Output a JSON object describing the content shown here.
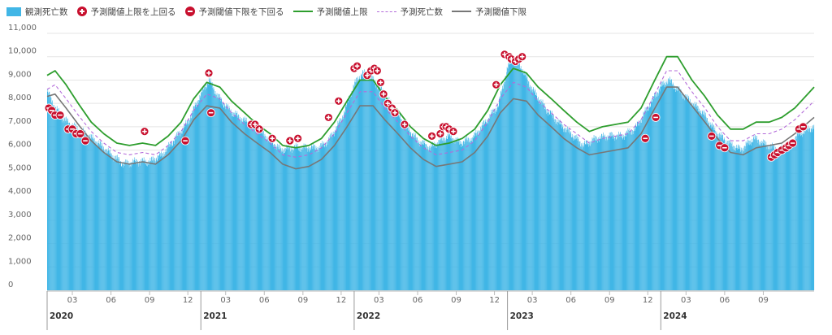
{
  "legend": {
    "observed": "観測死亡数",
    "above": "予測閾値上限を上回る",
    "below": "予測閾値下限を下回る",
    "upper": "予測閾値上限",
    "expected": "予測死亡数",
    "lower": "予測閾値下限"
  },
  "colors": {
    "bar": "#41b6e6",
    "upper": "#2e9e2e",
    "expected": "#b36bd9",
    "lower": "#777777",
    "marker": "#c8102e",
    "grid": "#e5e5e5"
  },
  "chart_data": {
    "type": "bar",
    "frequency": "daily",
    "x_start": "2020-01-01",
    "x_end": "2024-12-31",
    "ylim": [
      0,
      11000
    ],
    "y_ticks": [
      "11,000",
      "10,000",
      "9,000",
      "8,000",
      "7,000",
      "6,000",
      "5,000",
      "4,000",
      "3,000",
      "2,000",
      "1,000",
      "0"
    ],
    "y_tick_values": [
      11000,
      10000,
      9000,
      8000,
      7000,
      6000,
      5000,
      4000,
      3000,
      2000,
      1000,
      0
    ],
    "x_ticks": [
      {
        "date": "2020-03-01",
        "label": "03"
      },
      {
        "date": "2020-06-01",
        "label": "06"
      },
      {
        "date": "2020-09-01",
        "label": "09"
      },
      {
        "date": "2020-12-01",
        "label": "12"
      },
      {
        "date": "2021-03-01",
        "label": "03"
      },
      {
        "date": "2021-06-01",
        "label": "06"
      },
      {
        "date": "2021-09-01",
        "label": "09"
      },
      {
        "date": "2021-12-01",
        "label": "12"
      },
      {
        "date": "2022-03-01",
        "label": "03"
      },
      {
        "date": "2022-06-01",
        "label": "06"
      },
      {
        "date": "2022-09-01",
        "label": "09"
      },
      {
        "date": "2022-12-01",
        "label": "12"
      },
      {
        "date": "2023-03-01",
        "label": "03"
      },
      {
        "date": "2023-06-01",
        "label": "06"
      },
      {
        "date": "2023-09-01",
        "label": "09"
      },
      {
        "date": "2023-12-01",
        "label": "12"
      },
      {
        "date": "2024-03-01",
        "label": "03"
      },
      {
        "date": "2024-06-01",
        "label": "06"
      },
      {
        "date": "2024-09-01",
        "label": "09"
      }
    ],
    "year_labels": [
      {
        "date": "2020-01-01",
        "label": "2020"
      },
      {
        "date": "2021-01-01",
        "label": "2021"
      },
      {
        "date": "2022-01-01",
        "label": "2022"
      },
      {
        "date": "2023-01-01",
        "label": "2023"
      },
      {
        "date": "2024-01-01",
        "label": "2024"
      }
    ],
    "observed": [
      [
        "2020-01-01",
        8500
      ],
      [
        "2020-01-20",
        7800
      ],
      [
        "2020-02-10",
        7300
      ],
      [
        "2020-03-05",
        7000
      ],
      [
        "2020-04-01",
        6700
      ],
      [
        "2020-05-01",
        6300
      ],
      [
        "2020-06-01",
        5800
      ],
      [
        "2020-07-01",
        5400
      ],
      [
        "2020-08-01",
        5500
      ],
      [
        "2020-09-01",
        5500
      ],
      [
        "2020-10-01",
        5800
      ],
      [
        "2020-11-01",
        6500
      ],
      [
        "2020-12-01",
        7200
      ],
      [
        "2021-01-01",
        8400
      ],
      [
        "2021-01-20",
        9000
      ],
      [
        "2021-02-10",
        8300
      ],
      [
        "2021-03-10",
        7700
      ],
      [
        "2021-04-10",
        7300
      ],
      [
        "2021-05-10",
        7000
      ],
      [
        "2021-06-10",
        6500
      ],
      [
        "2021-07-10",
        6000
      ],
      [
        "2021-08-10",
        6100
      ],
      [
        "2021-09-10",
        6100
      ],
      [
        "2021-10-10",
        6100
      ],
      [
        "2021-11-01",
        6400
      ],
      [
        "2021-12-01",
        7300
      ],
      [
        "2022-01-01",
        8800
      ],
      [
        "2022-01-20",
        9300
      ],
      [
        "2022-02-10",
        9100
      ],
      [
        "2022-03-05",
        8600
      ],
      [
        "2022-04-01",
        7900
      ],
      [
        "2022-05-01",
        7100
      ],
      [
        "2022-06-01",
        6400
      ],
      [
        "2022-07-01",
        6100
      ],
      [
        "2022-07-25",
        6400
      ],
      [
        "2022-08-15",
        6600
      ],
      [
        "2022-09-10",
        6300
      ],
      [
        "2022-10-10",
        6500
      ],
      [
        "2022-11-10",
        7200
      ],
      [
        "2022-12-10",
        7900
      ],
      [
        "2023-01-01",
        9500
      ],
      [
        "2023-01-15",
        10000
      ],
      [
        "2023-02-01",
        9600
      ],
      [
        "2023-03-01",
        8600
      ],
      [
        "2023-04-01",
        7800
      ],
      [
        "2023-05-01",
        7200
      ],
      [
        "2023-06-01",
        6700
      ],
      [
        "2023-07-01",
        6200
      ],
      [
        "2023-08-01",
        6500
      ],
      [
        "2023-09-01",
        6600
      ],
      [
        "2023-10-01",
        6600
      ],
      [
        "2023-11-01",
        6900
      ],
      [
        "2023-12-01",
        7800
      ],
      [
        "2024-01-01",
        8700
      ],
      [
        "2024-01-20",
        9000
      ],
      [
        "2024-02-10",
        8600
      ],
      [
        "2024-03-10",
        8100
      ],
      [
        "2024-04-10",
        7600
      ],
      [
        "2024-05-10",
        6800
      ],
      [
        "2024-06-10",
        6300
      ],
      [
        "2024-07-10",
        6000
      ],
      [
        "2024-08-10",
        6500
      ],
      [
        "2024-09-10",
        6200
      ],
      [
        "2024-10-10",
        6000
      ],
      [
        "2024-11-01",
        6200
      ],
      [
        "2024-11-25",
        6700
      ],
      [
        "2024-12-31",
        7000
      ]
    ],
    "upper": [
      [
        "2020-01-01",
        9200
      ],
      [
        "2020-01-20",
        9400
      ],
      [
        "2020-02-15",
        8800
      ],
      [
        "2020-03-15",
        8000
      ],
      [
        "2020-04-15",
        7200
      ],
      [
        "2020-05-15",
        6700
      ],
      [
        "2020-06-15",
        6300
      ],
      [
        "2020-07-15",
        6200
      ],
      [
        "2020-08-15",
        6300
      ],
      [
        "2020-09-15",
        6200
      ],
      [
        "2020-10-15",
        6600
      ],
      [
        "2020-11-15",
        7200
      ],
      [
        "2020-12-15",
        8200
      ],
      [
        "2021-01-15",
        8900
      ],
      [
        "2021-02-15",
        8700
      ],
      [
        "2021-03-15",
        8100
      ],
      [
        "2021-04-15",
        7600
      ],
      [
        "2021-05-15",
        7100
      ],
      [
        "2021-06-15",
        6700
      ],
      [
        "2021-07-15",
        6200
      ],
      [
        "2021-08-15",
        6100
      ],
      [
        "2021-09-15",
        6200
      ],
      [
        "2021-10-15",
        6500
      ],
      [
        "2021-11-15",
        7200
      ],
      [
        "2021-12-15",
        8100
      ],
      [
        "2022-01-15",
        9000
      ],
      [
        "2022-02-15",
        9000
      ],
      [
        "2022-03-15",
        8300
      ],
      [
        "2022-04-15",
        7700
      ],
      [
        "2022-05-15",
        7000
      ],
      [
        "2022-06-15",
        6500
      ],
      [
        "2022-07-15",
        6200
      ],
      [
        "2022-08-15",
        6300
      ],
      [
        "2022-09-15",
        6500
      ],
      [
        "2022-10-15",
        6900
      ],
      [
        "2022-11-15",
        7700
      ],
      [
        "2022-12-15",
        8800
      ],
      [
        "2023-01-15",
        9500
      ],
      [
        "2023-02-15",
        9300
      ],
      [
        "2023-03-15",
        8700
      ],
      [
        "2023-04-15",
        8200
      ],
      [
        "2023-05-15",
        7700
      ],
      [
        "2023-06-15",
        7200
      ],
      [
        "2023-07-15",
        6800
      ],
      [
        "2023-08-15",
        7000
      ],
      [
        "2023-09-15",
        7100
      ],
      [
        "2023-10-15",
        7200
      ],
      [
        "2023-11-15",
        7800
      ],
      [
        "2023-12-15",
        8900
      ],
      [
        "2024-01-15",
        10000
      ],
      [
        "2024-02-10",
        10000
      ],
      [
        "2024-03-15",
        9000
      ],
      [
        "2024-04-15",
        8300
      ],
      [
        "2024-05-15",
        7500
      ],
      [
        "2024-06-15",
        6900
      ],
      [
        "2024-07-15",
        6900
      ],
      [
        "2024-08-15",
        7200
      ],
      [
        "2024-09-15",
        7200
      ],
      [
        "2024-10-15",
        7400
      ],
      [
        "2024-11-15",
        7800
      ],
      [
        "2024-12-31",
        8700
      ]
    ],
    "expected": [
      [
        "2020-01-01",
        8600
      ],
      [
        "2020-01-20",
        8800
      ],
      [
        "2020-02-15",
        8200
      ],
      [
        "2020-03-15",
        7500
      ],
      [
        "2020-04-15",
        6800
      ],
      [
        "2020-05-15",
        6300
      ],
      [
        "2020-06-15",
        5900
      ],
      [
        "2020-07-15",
        5800
      ],
      [
        "2020-08-15",
        5900
      ],
      [
        "2020-09-15",
        5800
      ],
      [
        "2020-10-15",
        6200
      ],
      [
        "2020-11-15",
        6800
      ],
      [
        "2020-12-15",
        7700
      ],
      [
        "2021-01-15",
        8400
      ],
      [
        "2021-02-15",
        8200
      ],
      [
        "2021-03-15",
        7600
      ],
      [
        "2021-04-15",
        7100
      ],
      [
        "2021-05-15",
        6700
      ],
      [
        "2021-06-15",
        6300
      ],
      [
        "2021-07-15",
        5800
      ],
      [
        "2021-08-15",
        5700
      ],
      [
        "2021-09-15",
        5800
      ],
      [
        "2021-10-15",
        6100
      ],
      [
        "2021-11-15",
        6700
      ],
      [
        "2021-12-15",
        7600
      ],
      [
        "2022-01-15",
        8500
      ],
      [
        "2022-02-15",
        8500
      ],
      [
        "2022-03-15",
        7800
      ],
      [
        "2022-04-15",
        7200
      ],
      [
        "2022-05-15",
        6600
      ],
      [
        "2022-06-15",
        6100
      ],
      [
        "2022-07-15",
        5800
      ],
      [
        "2022-08-15",
        5900
      ],
      [
        "2022-09-15",
        6000
      ],
      [
        "2022-10-15",
        6400
      ],
      [
        "2022-11-15",
        7200
      ],
      [
        "2022-12-15",
        8200
      ],
      [
        "2023-01-15",
        8900
      ],
      [
        "2023-02-15",
        8700
      ],
      [
        "2023-03-15",
        8100
      ],
      [
        "2023-04-15",
        7600
      ],
      [
        "2023-05-15",
        7100
      ],
      [
        "2023-06-15",
        6700
      ],
      [
        "2023-07-15",
        6300
      ],
      [
        "2023-08-15",
        6500
      ],
      [
        "2023-09-15",
        6600
      ],
      [
        "2023-10-15",
        6700
      ],
      [
        "2023-11-15",
        7300
      ],
      [
        "2023-12-15",
        8300
      ],
      [
        "2024-01-15",
        9400
      ],
      [
        "2024-02-10",
        9400
      ],
      [
        "2024-03-15",
        8500
      ],
      [
        "2024-04-15",
        7800
      ],
      [
        "2024-05-15",
        7000
      ],
      [
        "2024-06-15",
        6400
      ],
      [
        "2024-07-15",
        6400
      ],
      [
        "2024-08-15",
        6700
      ],
      [
        "2024-09-15",
        6700
      ],
      [
        "2024-10-15",
        6900
      ],
      [
        "2024-11-15",
        7300
      ],
      [
        "2024-12-31",
        8100
      ]
    ],
    "lower": [
      [
        "2020-01-01",
        8300
      ],
      [
        "2020-01-20",
        8400
      ],
      [
        "2020-02-15",
        7800
      ],
      [
        "2020-03-15",
        7100
      ],
      [
        "2020-04-15",
        6400
      ],
      [
        "2020-05-15",
        5900
      ],
      [
        "2020-06-15",
        5500
      ],
      [
        "2020-07-15",
        5400
      ],
      [
        "2020-08-15",
        5500
      ],
      [
        "2020-09-15",
        5400
      ],
      [
        "2020-10-15",
        5800
      ],
      [
        "2020-11-15",
        6400
      ],
      [
        "2020-12-15",
        7300
      ],
      [
        "2021-01-15",
        7900
      ],
      [
        "2021-02-15",
        7800
      ],
      [
        "2021-03-15",
        7200
      ],
      [
        "2021-04-15",
        6700
      ],
      [
        "2021-05-15",
        6300
      ],
      [
        "2021-06-15",
        5900
      ],
      [
        "2021-07-15",
        5400
      ],
      [
        "2021-08-15",
        5200
      ],
      [
        "2021-09-15",
        5300
      ],
      [
        "2021-10-15",
        5600
      ],
      [
        "2021-11-15",
        6200
      ],
      [
        "2021-12-15",
        7000
      ],
      [
        "2022-01-15",
        7900
      ],
      [
        "2022-02-15",
        7900
      ],
      [
        "2022-03-15",
        7300
      ],
      [
        "2022-04-15",
        6700
      ],
      [
        "2022-05-15",
        6100
      ],
      [
        "2022-06-15",
        5600
      ],
      [
        "2022-07-15",
        5300
      ],
      [
        "2022-08-15",
        5400
      ],
      [
        "2022-09-15",
        5500
      ],
      [
        "2022-10-15",
        5900
      ],
      [
        "2022-11-15",
        6600
      ],
      [
        "2022-12-15",
        7600
      ],
      [
        "2023-01-15",
        8200
      ],
      [
        "2023-02-15",
        8100
      ],
      [
        "2023-03-15",
        7500
      ],
      [
        "2023-04-15",
        7000
      ],
      [
        "2023-05-15",
        6500
      ],
      [
        "2023-06-15",
        6100
      ],
      [
        "2023-07-15",
        5800
      ],
      [
        "2023-08-15",
        5900
      ],
      [
        "2023-09-15",
        6000
      ],
      [
        "2023-10-15",
        6100
      ],
      [
        "2023-11-15",
        6700
      ],
      [
        "2023-12-15",
        7700
      ],
      [
        "2024-01-15",
        8700
      ],
      [
        "2024-02-10",
        8700
      ],
      [
        "2024-03-15",
        7900
      ],
      [
        "2024-04-15",
        7200
      ],
      [
        "2024-05-15",
        6500
      ],
      [
        "2024-06-15",
        5900
      ],
      [
        "2024-07-15",
        5800
      ],
      [
        "2024-08-15",
        6100
      ],
      [
        "2024-09-15",
        6200
      ],
      [
        "2024-10-15",
        6300
      ],
      [
        "2024-11-15",
        6700
      ],
      [
        "2024-12-31",
        7400
      ]
    ],
    "above_markers": [
      [
        "2020-08-20",
        6800
      ],
      [
        "2021-01-20",
        9300
      ],
      [
        "2021-05-01",
        7100
      ],
      [
        "2021-05-10",
        7100
      ],
      [
        "2021-05-20",
        6900
      ],
      [
        "2021-06-20",
        6500
      ],
      [
        "2021-08-01",
        6400
      ],
      [
        "2021-08-20",
        6500
      ],
      [
        "2021-11-01",
        7400
      ],
      [
        "2021-11-25",
        8100
      ],
      [
        "2022-01-01",
        9500
      ],
      [
        "2022-01-08",
        9600
      ],
      [
        "2022-02-01",
        9200
      ],
      [
        "2022-02-10",
        9400
      ],
      [
        "2022-02-18",
        9500
      ],
      [
        "2022-02-25",
        9400
      ],
      [
        "2022-03-05",
        8900
      ],
      [
        "2022-03-12",
        8400
      ],
      [
        "2022-03-22",
        8000
      ],
      [
        "2022-04-01",
        7800
      ],
      [
        "2022-04-08",
        7600
      ],
      [
        "2022-05-01",
        7100
      ],
      [
        "2022-07-05",
        6600
      ],
      [
        "2022-07-25",
        6700
      ],
      [
        "2022-08-01",
        7000
      ],
      [
        "2022-08-08",
        7000
      ],
      [
        "2022-08-15",
        6900
      ],
      [
        "2022-08-25",
        6800
      ],
      [
        "2022-12-05",
        8800
      ],
      [
        "2022-12-25",
        10100
      ],
      [
        "2023-01-05",
        10000
      ],
      [
        "2023-01-10",
        9900
      ],
      [
        "2023-01-20",
        9800
      ],
      [
        "2023-01-28",
        9900
      ],
      [
        "2023-02-05",
        10000
      ]
    ],
    "below_markers": [
      [
        "2020-01-05",
        7800
      ],
      [
        "2020-01-12",
        7700
      ],
      [
        "2020-01-20",
        7500
      ],
      [
        "2020-02-01",
        7500
      ],
      [
        "2020-02-20",
        6900
      ],
      [
        "2020-03-01",
        6900
      ],
      [
        "2020-03-10",
        6700
      ],
      [
        "2020-03-20",
        6700
      ],
      [
        "2020-04-01",
        6400
      ],
      [
        "2020-11-25",
        6400
      ],
      [
        "2021-01-25",
        7600
      ],
      [
        "2023-11-25",
        6500
      ],
      [
        "2023-12-20",
        7400
      ],
      [
        "2024-05-01",
        6600
      ],
      [
        "2024-05-20",
        6200
      ],
      [
        "2024-06-01",
        6100
      ],
      [
        "2024-09-20",
        5700
      ],
      [
        "2024-09-28",
        5800
      ],
      [
        "2024-10-05",
        5900
      ],
      [
        "2024-10-15",
        6000
      ],
      [
        "2024-10-25",
        6100
      ],
      [
        "2024-11-01",
        6200
      ],
      [
        "2024-11-10",
        6300
      ],
      [
        "2024-11-25",
        6900
      ],
      [
        "2024-12-05",
        7000
      ]
    ]
  }
}
